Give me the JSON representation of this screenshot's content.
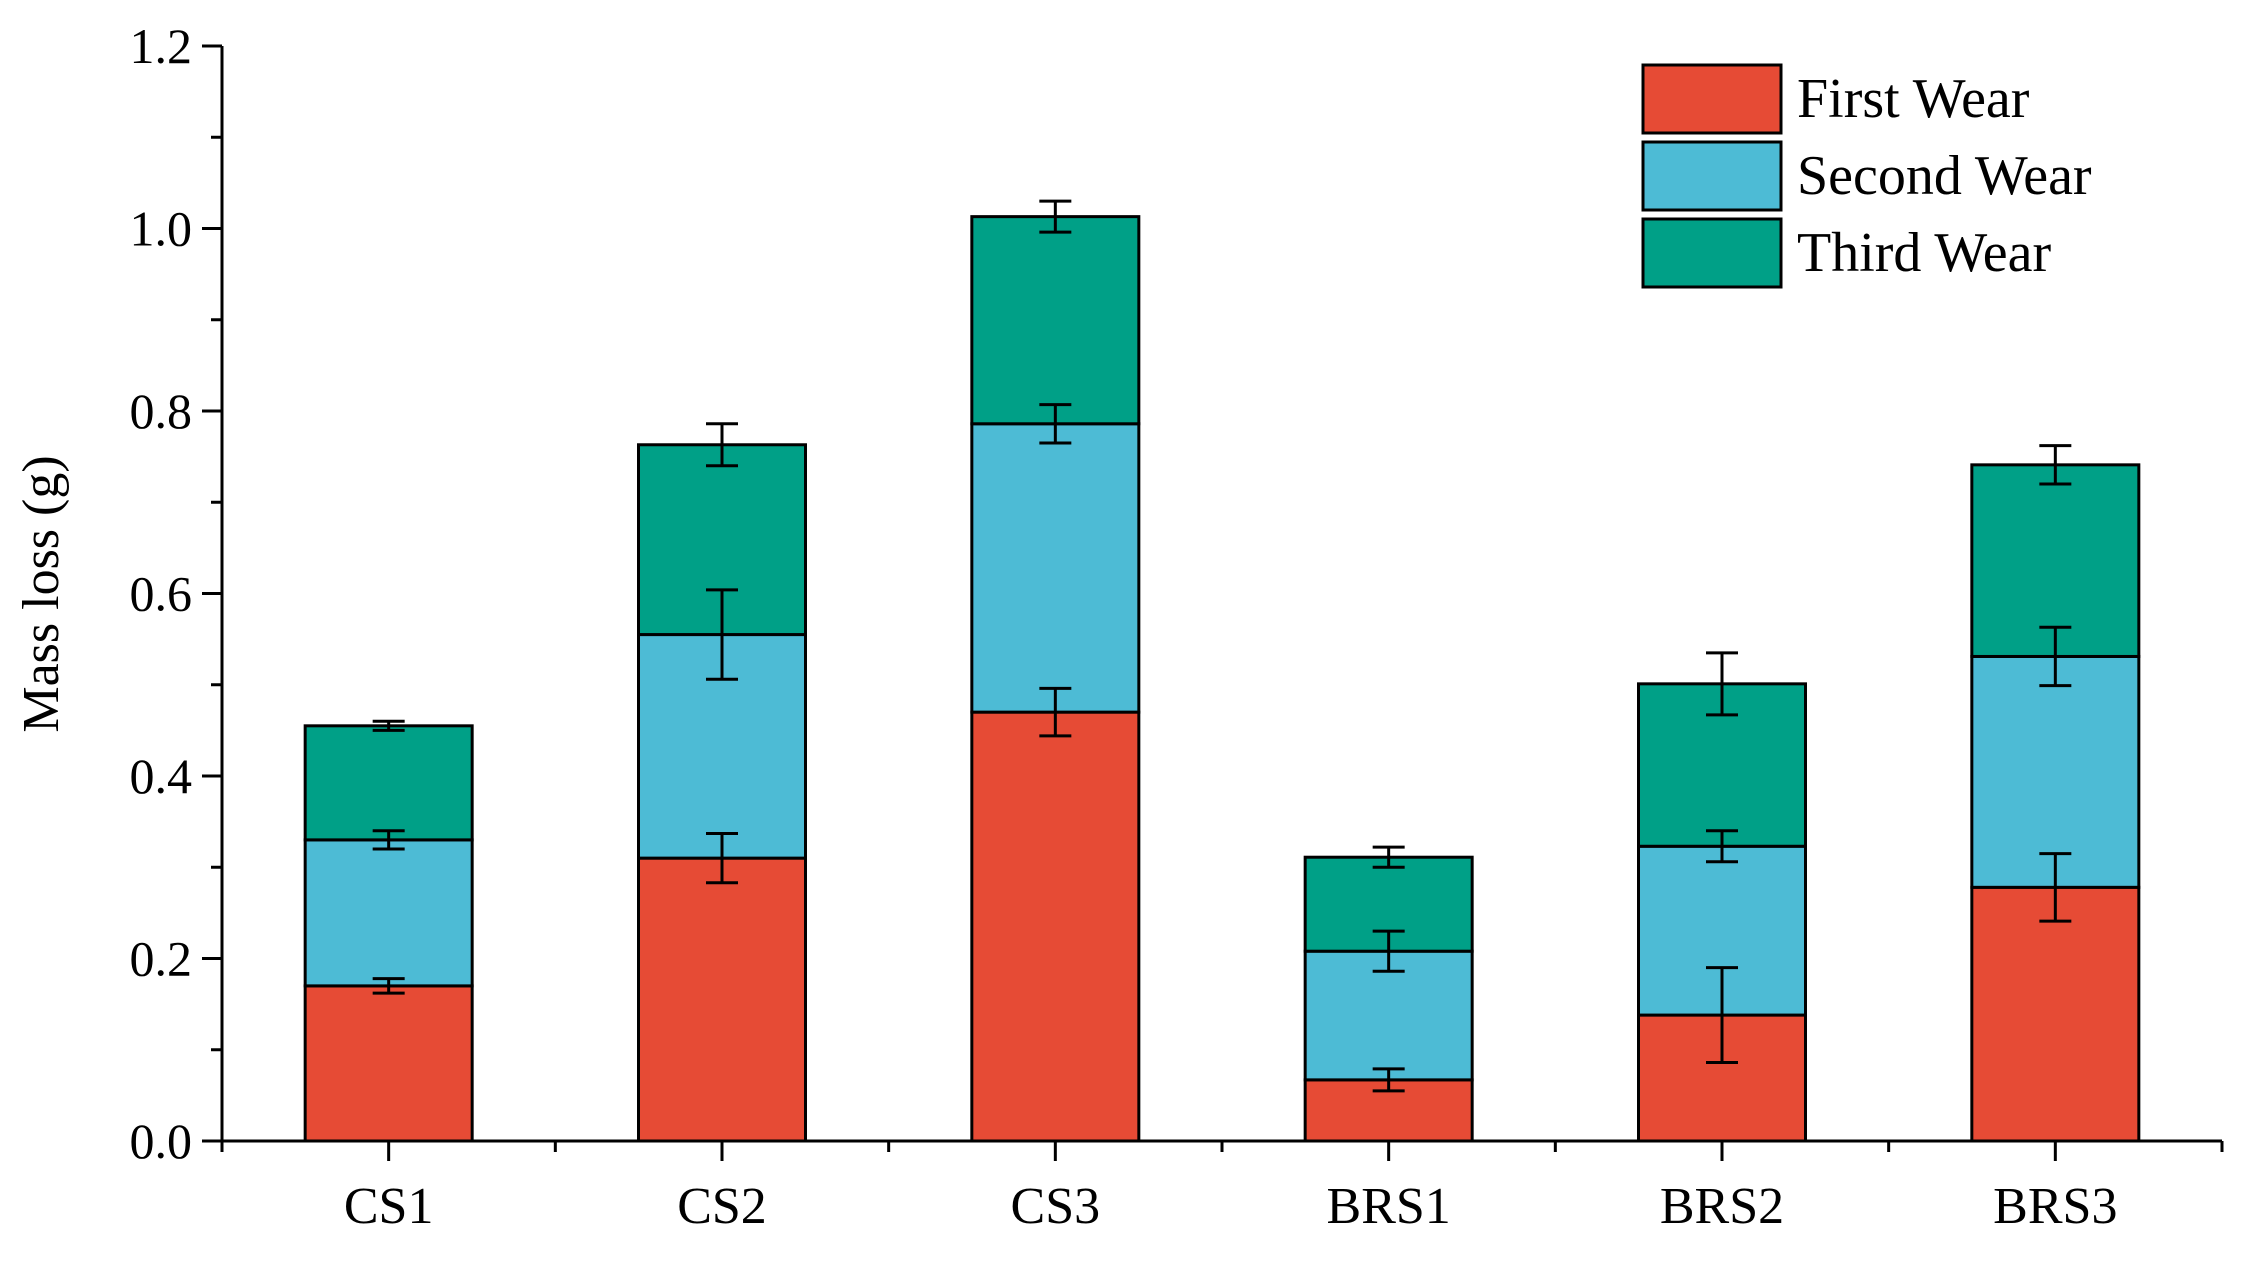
{
  "chart_data": {
    "type": "bar",
    "stacked": true,
    "title": "",
    "xlabel": "",
    "ylabel": "Mass loss (g)",
    "ylim": [
      0,
      1.2
    ],
    "yticks": [
      "0.0",
      "0.2",
      "0.4",
      "0.6",
      "0.8",
      "1.0",
      "1.2"
    ],
    "grid": false,
    "legend_position": "top-right",
    "categories": [
      "CS1",
      "CS2",
      "CS3",
      "BRS1",
      "BRS2",
      "BRS3"
    ],
    "series": [
      {
        "name": "First Wear",
        "color": "#e64b35",
        "values": [
          0.17,
          0.31,
          0.47,
          0.067,
          0.138,
          0.278
        ],
        "errors": [
          0.008,
          0.027,
          0.026,
          0.012,
          0.052,
          0.037
        ]
      },
      {
        "name": "Second Wear",
        "color": "#4dbbd5",
        "values": [
          0.16,
          0.245,
          0.316,
          0.141,
          0.185,
          0.253
        ],
        "errors": [
          0.01,
          0.049,
          0.021,
          0.022,
          0.017,
          0.032
        ]
      },
      {
        "name": "Third Wear",
        "color": "#00a087",
        "values": [
          0.125,
          0.208,
          0.227,
          0.103,
          0.178,
          0.21
        ],
        "errors": [
          0.005,
          0.023,
          0.017,
          0.011,
          0.034,
          0.021
        ]
      }
    ]
  }
}
